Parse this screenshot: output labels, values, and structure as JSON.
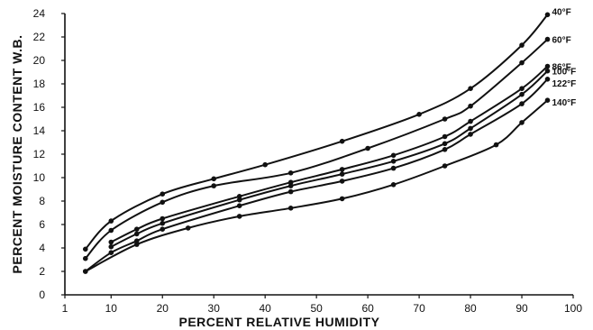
{
  "chart_data": {
    "type": "line",
    "xlabel": "PERCENT RELATIVE HUMIDITY",
    "ylabel": "PERCENT MOISTURE CONTENT W.B.",
    "xlim": [
      1,
      100
    ],
    "ylim": [
      0,
      24
    ],
    "x_ticks": [
      1,
      10,
      20,
      30,
      40,
      50,
      60,
      70,
      80,
      90,
      100
    ],
    "y_ticks": [
      0,
      2,
      4,
      6,
      8,
      10,
      12,
      14,
      16,
      18,
      20,
      22,
      24
    ],
    "grid": false,
    "legend": "inline labels at right end of curves",
    "series": [
      {
        "name": "40°F",
        "x": [
          5,
          10,
          20,
          30,
          40,
          55,
          70,
          80,
          90,
          95
        ],
        "y": [
          3.9,
          6.3,
          8.6,
          9.9,
          11.1,
          13.1,
          15.4,
          17.6,
          21.3,
          23.9
        ]
      },
      {
        "name": "60°F",
        "x": [
          5,
          10,
          20,
          30,
          45,
          60,
          75,
          80,
          90,
          95
        ],
        "y": [
          3.1,
          5.5,
          7.9,
          9.3,
          10.4,
          12.5,
          15.0,
          16.1,
          19.8,
          21.8
        ]
      },
      {
        "name": "86°F",
        "x": [
          10,
          15,
          20,
          35,
          45,
          55,
          65,
          75,
          80,
          90,
          95
        ],
        "y": [
          4.5,
          5.6,
          6.5,
          8.4,
          9.6,
          10.7,
          11.9,
          13.5,
          14.8,
          17.6,
          19.5
        ]
      },
      {
        "name": "100°F",
        "x": [
          10,
          15,
          20,
          35,
          45,
          55,
          65,
          75,
          80,
          90,
          95
        ],
        "y": [
          4.1,
          5.2,
          6.1,
          8.1,
          9.3,
          10.3,
          11.4,
          12.9,
          14.2,
          17.1,
          19.1
        ]
      },
      {
        "name": "122°F",
        "x": [
          5,
          10,
          15,
          20,
          35,
          45,
          55,
          65,
          75,
          80,
          90,
          95
        ],
        "y": [
          2.0,
          3.6,
          4.6,
          5.6,
          7.6,
          8.8,
          9.7,
          10.8,
          12.4,
          13.7,
          16.3,
          18.4
        ]
      },
      {
        "name": "140°F",
        "x": [
          5,
          15,
          25,
          35,
          45,
          55,
          65,
          75,
          85,
          90,
          95
        ],
        "y": [
          2.0,
          4.3,
          5.7,
          6.7,
          7.4,
          8.2,
          9.4,
          11.0,
          12.8,
          14.7,
          16.6
        ]
      }
    ]
  }
}
